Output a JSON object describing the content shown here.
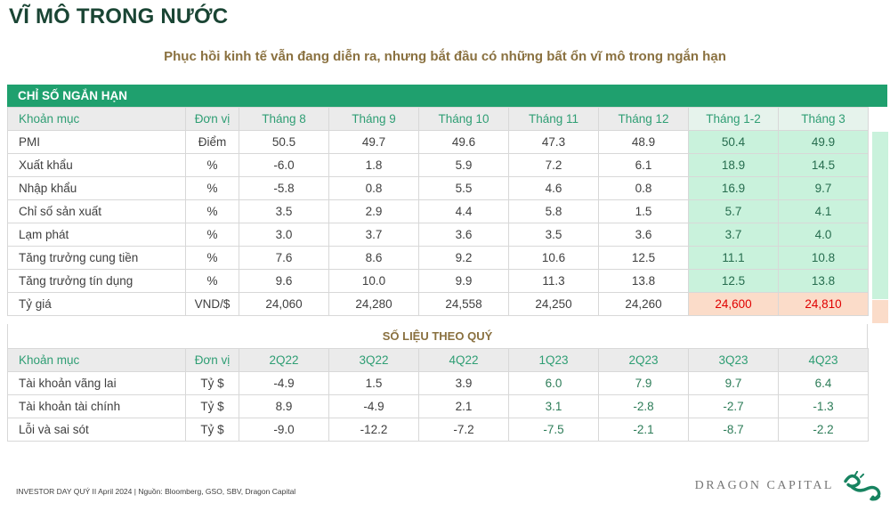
{
  "page": {
    "title": "VĨ MÔ TRONG NƯỚC",
    "subtitle": "Phục hồi kinh tế vẫn đang diễn ra, nhưng bắt đầu có những bất ổn vĩ mô trong ngắn hạn"
  },
  "tables": {
    "monthly": {
      "section_title": "CHỈ SỐ NGẮN HẠN",
      "columns": [
        "Khoản mục",
        "Đơn vị",
        "Tháng 8",
        "Tháng 9",
        "Tháng 10",
        "Tháng 11",
        "Tháng 12",
        "Tháng 1-2",
        "Tháng 3"
      ],
      "highlight_last_n_columns": 2,
      "rows": [
        {
          "label": "PMI",
          "unit": "Điểm",
          "values": [
            "50.5",
            "49.7",
            "49.6",
            "47.3",
            "48.9",
            "50.4",
            "49.9"
          ],
          "highlight": "mint"
        },
        {
          "label": "Xuất khẩu",
          "unit": "%",
          "values": [
            "-6.0",
            "1.8",
            "5.9",
            "7.2",
            "6.1",
            "18.9",
            "14.5"
          ],
          "highlight": "mint"
        },
        {
          "label": "Nhập khẩu",
          "unit": "%",
          "values": [
            "-5.8",
            "0.8",
            "5.5",
            "4.6",
            "0.8",
            "16.9",
            "9.7"
          ],
          "highlight": "mint"
        },
        {
          "label": "Chỉ số sản xuất",
          "unit": "%",
          "values": [
            "3.5",
            "2.9",
            "4.4",
            "5.8",
            "1.5",
            "5.7",
            "4.1"
          ],
          "highlight": "mint"
        },
        {
          "label": "Lạm phát",
          "unit": "%",
          "values": [
            "3.0",
            "3.7",
            "3.6",
            "3.5",
            "3.6",
            "3.7",
            "4.0"
          ],
          "highlight": "mint"
        },
        {
          "label": "Tăng trưởng cung tiền",
          "unit": "%",
          "values": [
            "7.6",
            "8.6",
            "9.2",
            "10.6",
            "12.5",
            "11.1",
            "10.8"
          ],
          "highlight": "mint"
        },
        {
          "label": "Tăng trưởng tín dụng",
          "unit": "%",
          "values": [
            "9.6",
            "10.0",
            "9.9",
            "11.3",
            "13.8",
            "12.5",
            "13.8"
          ],
          "highlight": "mint"
        },
        {
          "label": "Tỷ giá",
          "unit": "VND/$",
          "values": [
            "24,060",
            "24,280",
            "24,558",
            "24,250",
            "24,260",
            "24,600",
            "24,810"
          ],
          "highlight": "peach"
        }
      ]
    },
    "quarterly": {
      "section_title": "SỐ LIỆU THEO QUÝ",
      "columns": [
        "Khoản mục",
        "Đơn vị",
        "2Q22",
        "3Q22",
        "4Q22",
        "1Q23",
        "2Q23",
        "3Q23",
        "4Q23"
      ],
      "green_values_from_index": 3,
      "rows": [
        {
          "label": "Tài khoản vãng lai",
          "unit": "Tỷ $",
          "values": [
            "-4.9",
            "1.5",
            "3.9",
            "6.0",
            "7.9",
            "9.7",
            "6.4"
          ]
        },
        {
          "label": "Tài khoản tài chính",
          "unit": "Tỷ $",
          "values": [
            "8.9",
            "-4.9",
            "2.1",
            "3.1",
            "-2.8",
            "-2.7",
            "-1.3"
          ]
        },
        {
          "label": "Lỗi và sai sót",
          "unit": "Tỷ $",
          "values": [
            "-9.0",
            "-12.2",
            "-7.2",
            "-7.5",
            "-2.1",
            "-8.7",
            "-2.2"
          ]
        }
      ]
    }
  },
  "footer": {
    "source_note": "INVESTOR DAY QUÝ II April 2024 | Nguồn: Bloomberg, GSO, SBV, Dragon Capital",
    "brand_name": "DRAGON CAPITAL"
  },
  "colors": {
    "title_green": "#1a4534",
    "subtitle_gold": "#8a7140",
    "section_bar_green": "#1fa06e",
    "table_header_text_green": "#2f9e74",
    "mint_bg": "#c9f2dc",
    "mint_text": "#266c4e",
    "peach_bg": "#fbdcc9",
    "alert_red": "#e00000",
    "quarter_green_text": "#2d7c58",
    "brand_gray": "#767676",
    "logo_green": "#178360"
  }
}
